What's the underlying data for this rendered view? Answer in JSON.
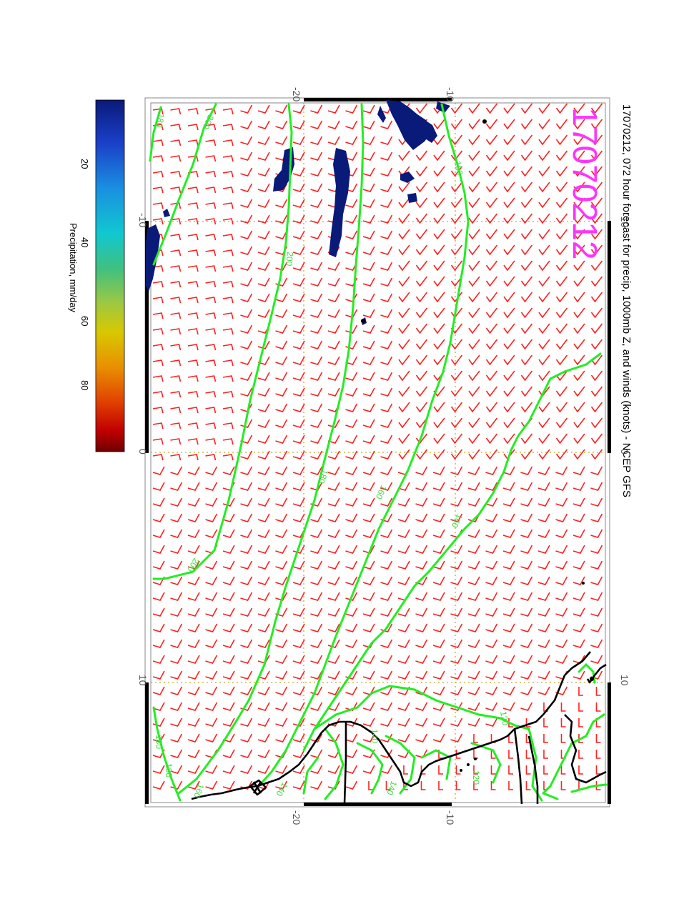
{
  "title": "17070212, 072 hour forecast for precip, 1000mb Z, and winds (knots) - NCEP GFS",
  "stamp": "17070212",
  "colors": {
    "stamp": "#ff33ff",
    "contour": "#22ee22",
    "barb": "#ff2020",
    "grid": "#ccaa22",
    "precip": "#0a1a78",
    "coast": "#000000"
  },
  "colorbar": {
    "label": "Precipitation, mm/day",
    "ticks": [
      "20",
      "40",
      "60",
      "80"
    ],
    "stops": [
      "#0a1a78",
      "#1a3fc8",
      "#1a8fe0",
      "#10c8d0",
      "#40c080",
      "#a0c840",
      "#d8c800",
      "#e89000",
      "#e04000",
      "#c00000",
      "#700000"
    ]
  },
  "map": {
    "lat_labels_top": [
      "-20",
      "-10"
    ],
    "lat_labels_bottom": [
      "-20",
      "-10"
    ],
    "lon_labels_left": [
      "-10",
      "0",
      "10"
    ],
    "lon_labels_right": [
      "-10",
      "0",
      "10"
    ],
    "contour_labels": [
      "180",
      "200",
      "180",
      "200",
      "160",
      "200",
      "180",
      "160",
      "140",
      "140",
      "120",
      "180",
      "160",
      "140",
      "180",
      "120"
    ]
  }
}
